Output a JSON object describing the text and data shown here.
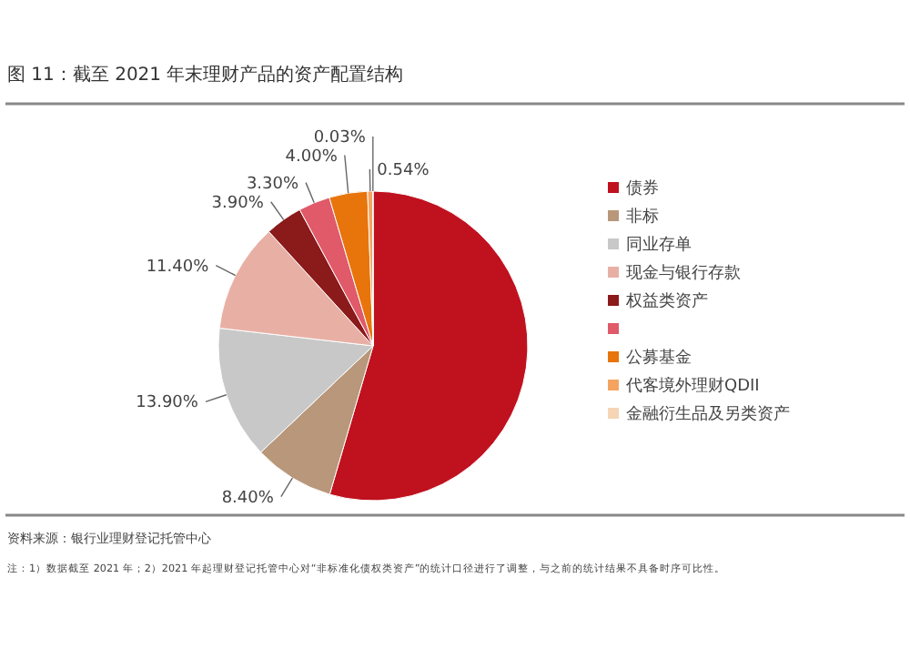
{
  "chart_data": {
    "type": "pie",
    "title": "图 11：截至 2021 年末理财产品的资产配置结构",
    "categories": [
      "债券",
      "非标",
      "同业存单",
      "现金与银行存款",
      "权益类资产",
      null,
      "公募基金",
      "代客境外理财QDII",
      "金融衍生品及另类资产"
    ],
    "values": [
      54.53,
      8.4,
      13.9,
      11.4,
      3.9,
      3.3,
      4.0,
      0.54,
      0.03
    ],
    "value_labels": [
      null,
      "8.40%",
      "13.90%",
      "11.40%",
      "3.90%",
      "3.30%",
      "4.00%",
      "0.54%",
      "0.03%"
    ],
    "colors": [
      "#c0111f",
      "#b8977a",
      "#c8c8c8",
      "#e8b0a5",
      "#8b1a1a",
      "#e05a6a",
      "#e8740c",
      "#f4a460",
      "#f5d5b5"
    ],
    "legend": "right",
    "annotations": [
      "资料来源：银行业理财登记托管中心",
      "注：1）数据截至 2021 年；2）2021 年起理财登记托管中心对“非标准化债权类资产”的统计口径进行了调整，与之前的统计结果不具备时序可比性。"
    ]
  }
}
